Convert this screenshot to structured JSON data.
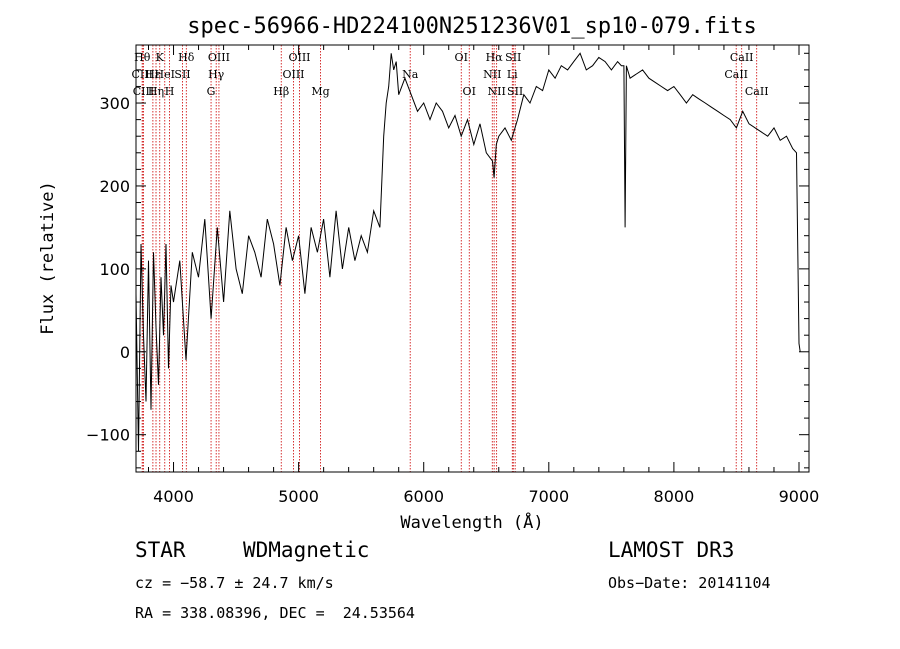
{
  "chart_data": {
    "type": "line",
    "title": "spec-56966-HD224100N251236V01_sp10-079.fits",
    "xlabel": "Wavelength (Å)",
    "ylabel": "Flux (relative)",
    "xlim": [
      3700,
      9080
    ],
    "ylim": [
      -145,
      370
    ],
    "xticks": [
      4000,
      5000,
      6000,
      7000,
      8000,
      9000
    ],
    "yticks": [
      -100,
      0,
      100,
      200,
      300
    ],
    "series": [
      {
        "name": "flux",
        "x": [
          3700,
          3720,
          3740,
          3760,
          3780,
          3800,
          3820,
          3840,
          3860,
          3880,
          3900,
          3920,
          3940,
          3960,
          3980,
          4000,
          4050,
          4100,
          4150,
          4200,
          4250,
          4300,
          4350,
          4400,
          4450,
          4500,
          4550,
          4600,
          4650,
          4700,
          4750,
          4800,
          4850,
          4900,
          4950,
          5000,
          5050,
          5100,
          5150,
          5200,
          5250,
          5300,
          5350,
          5400,
          5450,
          5500,
          5550,
          5600,
          5650,
          5680,
          5700,
          5720,
          5740,
          5760,
          5780,
          5800,
          5850,
          5900,
          5950,
          6000,
          6050,
          6100,
          6150,
          6200,
          6250,
          6300,
          6350,
          6400,
          6450,
          6500,
          6550,
          6563,
          6580,
          6600,
          6650,
          6700,
          6750,
          6800,
          6850,
          6900,
          6950,
          7000,
          7050,
          7100,
          7150,
          7200,
          7250,
          7300,
          7350,
          7400,
          7450,
          7500,
          7550,
          7580,
          7600,
          7610,
          7620,
          7630,
          7650,
          7700,
          7750,
          7800,
          7850,
          7900,
          7950,
          8000,
          8050,
          8100,
          8150,
          8200,
          8250,
          8300,
          8350,
          8400,
          8450,
          8500,
          8550,
          8600,
          8650,
          8700,
          8750,
          8800,
          8850,
          8900,
          8950,
          8980,
          9000,
          9010
        ],
        "y": [
          70,
          -120,
          130,
          20,
          -60,
          110,
          -70,
          120,
          30,
          -40,
          90,
          20,
          130,
          -20,
          80,
          60,
          110,
          -10,
          120,
          90,
          160,
          40,
          150,
          60,
          170,
          100,
          70,
          140,
          120,
          90,
          160,
          130,
          80,
          150,
          110,
          140,
          70,
          150,
          120,
          160,
          90,
          170,
          100,
          150,
          110,
          140,
          120,
          170,
          150,
          260,
          300,
          320,
          360,
          340,
          350,
          310,
          330,
          310,
          290,
          300,
          280,
          300,
          290,
          270,
          285,
          260,
          280,
          250,
          275,
          240,
          230,
          210,
          250,
          260,
          270,
          255,
          280,
          310,
          300,
          320,
          315,
          340,
          330,
          345,
          340,
          350,
          360,
          340,
          345,
          355,
          350,
          340,
          350,
          345,
          345,
          150,
          345,
          340,
          330,
          335,
          340,
          330,
          325,
          320,
          315,
          320,
          310,
          300,
          310,
          305,
          300,
          295,
          290,
          285,
          280,
          270,
          290,
          275,
          270,
          265,
          260,
          270,
          255,
          260,
          245,
          240,
          10,
          0
        ]
      }
    ],
    "lines": [
      {
        "x": 3750,
        "label": "Hθ",
        "row": 1
      },
      {
        "x": 3750,
        "label": "CIII",
        "row": 2
      },
      {
        "x": 3760,
        "label": "CIII",
        "row": 3
      },
      {
        "x": 3835,
        "label": "Hε",
        "row": 2
      },
      {
        "x": 3860,
        "label": "Hη",
        "row": 3
      },
      {
        "x": 3890,
        "label": "K",
        "row": 1
      },
      {
        "x": 3930,
        "label": "HeI",
        "row": 2
      },
      {
        "x": 3968,
        "label": "H",
        "row": 3
      },
      {
        "x": 4072,
        "label": "SII",
        "row": 2
      },
      {
        "x": 4102,
        "label": "Hδ",
        "row": 1
      },
      {
        "x": 4300,
        "label": "G",
        "row": 3
      },
      {
        "x": 4341,
        "label": "Hγ",
        "row": 2
      },
      {
        "x": 4363,
        "label": "OIII",
        "row": 1
      },
      {
        "x": 4861,
        "label": "Hβ",
        "row": 3
      },
      {
        "x": 4959,
        "label": "OIII",
        "row": 2
      },
      {
        "x": 5007,
        "label": "OIII",
        "row": 1
      },
      {
        "x": 5175,
        "label": "Mg",
        "row": 3
      },
      {
        "x": 5892,
        "label": "Na",
        "row": 2
      },
      {
        "x": 6300,
        "label": "OI",
        "row": 1
      },
      {
        "x": 6364,
        "label": "OI",
        "row": 3
      },
      {
        "x": 6548,
        "label": "NII",
        "row": 2
      },
      {
        "x": 6563,
        "label": "Hα",
        "row": 1
      },
      {
        "x": 6583,
        "label": "NII",
        "row": 3
      },
      {
        "x": 6708,
        "label": "Li",
        "row": 2
      },
      {
        "x": 6716,
        "label": "SII",
        "row": 1
      },
      {
        "x": 6731,
        "label": "SII",
        "row": 3
      },
      {
        "x": 8498,
        "label": "CaII",
        "row": 2
      },
      {
        "x": 8542,
        "label": "CaII",
        "row": 1
      },
      {
        "x": 8662,
        "label": "CaII",
        "row": 3
      }
    ]
  },
  "info": {
    "class_label": "STAR",
    "subclass_label": "WDMagnetic",
    "survey": "LAMOST DR3",
    "cz": "cz = −58.7 ± 24.7 km/s",
    "obs_date": "Obs−Date: 20141104",
    "radec": "RA = 338.08396, DEC =  24.53564"
  },
  "colors": {
    "axis": "#000000",
    "series": "#000000",
    "line_marker": "#cc0000"
  }
}
